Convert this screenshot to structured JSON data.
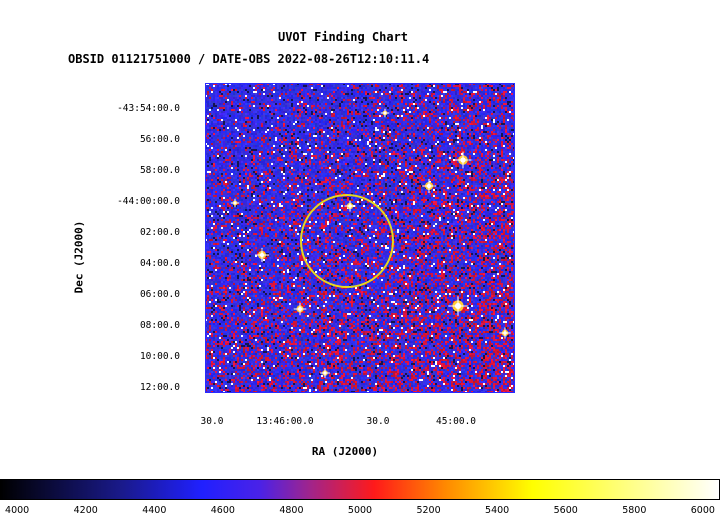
{
  "chart_data": {
    "type": "heatmap",
    "title": "UVOT Finding Chart",
    "subtitle": "OBSID 01121751000 / DATE-OBS 2022-08-26T12:10:11.4",
    "xlabel": "RA (J2000)",
    "ylabel": "Dec (J2000)",
    "x_ticks": [
      "30.0",
      "13:46:00.0",
      "30.0",
      "45:00.0"
    ],
    "y_ticks": [
      "-43:54:00.0",
      "56:00.0",
      "58:00.0",
      "-44:00:00.0",
      "02:00.0",
      "04:00.0",
      "06:00.0",
      "08:00.0",
      "10:00.0",
      "12:00.0"
    ],
    "colorbar": {
      "ticks": [
        "4000",
        "4200",
        "4400",
        "4600",
        "4800",
        "5000",
        "5200",
        "5400",
        "5600",
        "5800",
        "6000"
      ],
      "range": [
        3950,
        6050
      ]
    },
    "marker": {
      "type": "circle",
      "color": "#e6d81e"
    },
    "colors": {
      "frame": "#2a2aff",
      "marker": "#e6d81e"
    }
  }
}
